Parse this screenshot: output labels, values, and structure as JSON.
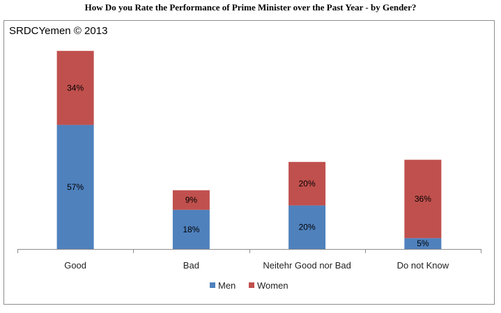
{
  "title": "How Do you Rate the Performance of Prime Minister over the Past Year - by Gender?",
  "watermark": "SRDCYemen © 2013",
  "colors": {
    "men": "#4F81BD",
    "women": "#C0504D",
    "axis": "#8c8c8c"
  },
  "chart_data": {
    "type": "bar",
    "stacked": true,
    "categories": [
      "Good",
      "Bad",
      "Neitehr Good nor Bad",
      "Do not Know"
    ],
    "series": [
      {
        "name": "Men",
        "values": [
          57,
          18,
          20,
          5
        ],
        "labels": [
          "57%",
          "18%",
          "20%",
          "5%"
        ]
      },
      {
        "name": "Women",
        "values": [
          34,
          9,
          20,
          36
        ],
        "labels": [
          "34%",
          "9%",
          "20%",
          "36%"
        ]
      }
    ],
    "ylim": [
      0,
      100
    ],
    "grid": false,
    "legend": "bottom"
  }
}
